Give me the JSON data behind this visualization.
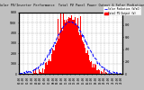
{
  "title": "Solar PV/Inverter Performance  Total PV Panel Power Output & Solar Radiation",
  "bg_color": "#c0c0c0",
  "plot_bg_color": "#ffffff",
  "grid_color": "#888888",
  "bar_color": "#ff0000",
  "line_color": "#0000ff",
  "n_points": 144,
  "pv_peak": 5500,
  "radiation_peak": 850,
  "ylim_left": [
    0,
    6000
  ],
  "ylim_right": [
    0,
    1000
  ],
  "legend_pv": "Total PV Output (W)",
  "legend_rad": "Solar Radiation (W/m2)"
}
